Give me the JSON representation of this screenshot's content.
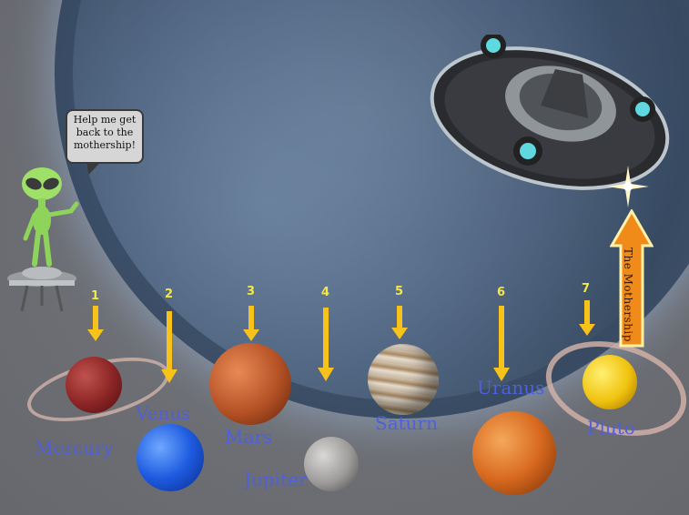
{
  "speech_bubble": {
    "text": "Help me get back to the mothership!"
  },
  "mothership_label": "The Mothership",
  "steps": [
    {
      "number": "1"
    },
    {
      "number": "2"
    },
    {
      "number": "3"
    },
    {
      "number": "4"
    },
    {
      "number": "5"
    },
    {
      "number": "6"
    },
    {
      "number": "7"
    }
  ],
  "planets": {
    "mercury": "Mercury",
    "venus": "Venus",
    "mars": "Mars",
    "jupiter": "Jupiter",
    "saturn": "Saturn",
    "uranus": "Uranus",
    "pluto": "Pluto"
  },
  "colors": {
    "arrow": "#f7c21a",
    "number": "#f2e84a",
    "planet_label": "#4f60d9",
    "mothership_arrow": "#f08a18"
  }
}
